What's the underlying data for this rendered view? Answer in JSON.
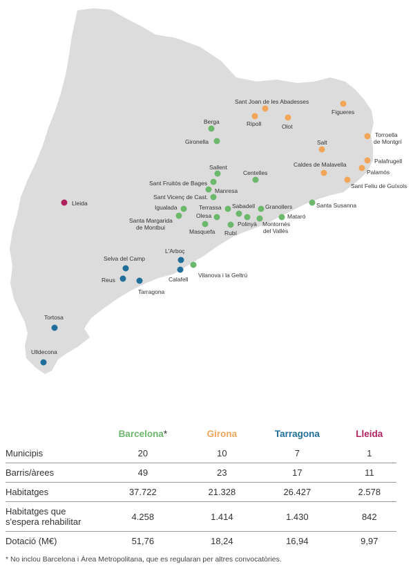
{
  "colors": {
    "map_fill": "#dcdcdc",
    "barcelona": "#6cb86d",
    "girona": "#f2a65a",
    "tarragona": "#1f6f9a",
    "lleida": "#b0215f"
  },
  "places": [
    {
      "name": "Sant Joan de les Abadesses",
      "province": "girona"
    },
    {
      "name": "Figueres",
      "province": "girona"
    },
    {
      "name": "Ripoll",
      "province": "girona"
    },
    {
      "name": "Olot",
      "province": "girona"
    },
    {
      "name": "Torroella de Montgrí",
      "province": "girona"
    },
    {
      "name": "Salt",
      "province": "girona"
    },
    {
      "name": "Palafrugell",
      "province": "girona"
    },
    {
      "name": "Caldes de Malavella",
      "province": "girona"
    },
    {
      "name": "Palamós",
      "province": "girona"
    },
    {
      "name": "Sant Feliu de Guíxols",
      "province": "girona"
    },
    {
      "name": "Berga",
      "province": "barcelona"
    },
    {
      "name": "Gironella",
      "province": "barcelona"
    },
    {
      "name": "Sallent",
      "province": "barcelona"
    },
    {
      "name": "Centelles",
      "province": "barcelona"
    },
    {
      "name": "Sant Fruitós de Bages",
      "province": "barcelona"
    },
    {
      "name": "Manresa",
      "province": "barcelona"
    },
    {
      "name": "Sant Vicenç de Cast.",
      "province": "barcelona"
    },
    {
      "name": "Igualada",
      "province": "barcelona"
    },
    {
      "name": "Terrassa",
      "province": "barcelona"
    },
    {
      "name": "Sabadell",
      "province": "barcelona"
    },
    {
      "name": "Granollers",
      "province": "barcelona"
    },
    {
      "name": "Santa Susanna",
      "province": "barcelona"
    },
    {
      "name": "Santa Margarida de Montbui",
      "province": "barcelona"
    },
    {
      "name": "Olesa",
      "province": "barcelona"
    },
    {
      "name": "Polinyà",
      "province": "barcelona"
    },
    {
      "name": "Mataró",
      "province": "barcelona"
    },
    {
      "name": "Masquefa",
      "province": "barcelona"
    },
    {
      "name": "Rubí",
      "province": "barcelona"
    },
    {
      "name": "Montornès del Vallès",
      "province": "barcelona"
    },
    {
      "name": "Vilanova i la Geltrú",
      "province": "barcelona"
    },
    {
      "name": "Lleida",
      "province": "lleida"
    },
    {
      "name": "L'Arboç",
      "province": "tarragona"
    },
    {
      "name": "Selva del Camp",
      "province": "tarragona"
    },
    {
      "name": "Calafell",
      "province": "tarragona"
    },
    {
      "name": "Reus",
      "province": "tarragona"
    },
    {
      "name": "Tarragona",
      "province": "tarragona"
    },
    {
      "name": "Tortosa",
      "province": "tarragona"
    },
    {
      "name": "Ulldecona",
      "province": "tarragona"
    }
  ],
  "table": {
    "headers": [
      "Barcelona",
      "Girona",
      "Tarragona",
      "Lleida"
    ],
    "asterisk": "*",
    "rows": [
      {
        "label": "Municipis",
        "values": [
          "20",
          "10",
          "7",
          "1"
        ]
      },
      {
        "label": "Barris/àrees",
        "values": [
          "49",
          "23",
          "17",
          "11"
        ]
      },
      {
        "label": "Habitatges",
        "values": [
          "37.722",
          "21.328",
          "26.427",
          "2.578"
        ]
      },
      {
        "label": "Habitatges que s'espera rehabilitar",
        "values": [
          "4.258",
          "1.414",
          "1.430",
          "842"
        ]
      },
      {
        "label": "Dotació (M€)",
        "values": [
          "51,76",
          "18,24",
          "16,94",
          "9,97"
        ]
      }
    ]
  },
  "footnote": "* No inclou Barcelona i Àrea Metropolitana, que es regularan per altres convocatòries."
}
